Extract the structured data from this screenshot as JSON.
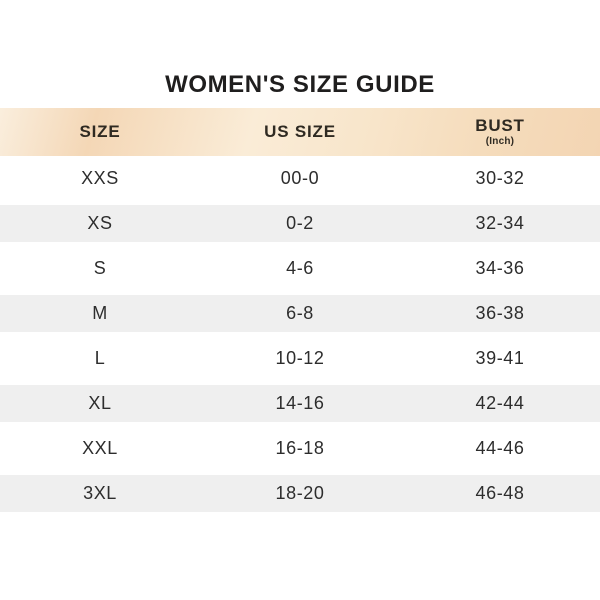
{
  "page": {
    "title": "WOMEN'S SIZE GUIDE"
  },
  "colors": {
    "background": "#ffffff",
    "header_gradient_light": "#faeedd",
    "header_gradient_dark": "#f3d5b3",
    "row_stripe": "#efefef",
    "title_text": "#1f1e1e",
    "header_text": "#2f2a22",
    "body_text": "#2d2d2d"
  },
  "table": {
    "columns": [
      {
        "label": "SIZE",
        "sublabel": ""
      },
      {
        "label": "US SIZE",
        "sublabel": ""
      },
      {
        "label": "BUST",
        "sublabel": "(Inch)"
      }
    ],
    "rows": [
      {
        "size": "XXS",
        "us_size": "00-0",
        "bust": "30-32"
      },
      {
        "size": "XS",
        "us_size": "0-2",
        "bust": "32-34"
      },
      {
        "size": "S",
        "us_size": "4-6",
        "bust": "34-36"
      },
      {
        "size": "M",
        "us_size": "6-8",
        "bust": "36-38"
      },
      {
        "size": "L",
        "us_size": "10-12",
        "bust": "39-41"
      },
      {
        "size": "XL",
        "us_size": "14-16",
        "bust": "42-44"
      },
      {
        "size": "XXL",
        "us_size": "16-18",
        "bust": "44-46"
      },
      {
        "size": "3XL",
        "us_size": "18-20",
        "bust": "46-48"
      }
    ]
  },
  "chart_data": {
    "type": "table",
    "title": "WOMEN'S SIZE GUIDE",
    "columns": [
      "SIZE",
      "US SIZE",
      "BUST (Inch)"
    ],
    "rows": [
      [
        "XXS",
        "00-0",
        "30-32"
      ],
      [
        "XS",
        "0-2",
        "32-34"
      ],
      [
        "S",
        "4-6",
        "34-36"
      ],
      [
        "M",
        "6-8",
        "36-38"
      ],
      [
        "L",
        "10-12",
        "39-41"
      ],
      [
        "XL",
        "14-16",
        "42-44"
      ],
      [
        "XXL",
        "16-18",
        "44-46"
      ],
      [
        "3XL",
        "18-20",
        "46-48"
      ]
    ],
    "layout": "3 equal centered columns, peach gradient header, alternating light-gray row stripes"
  }
}
